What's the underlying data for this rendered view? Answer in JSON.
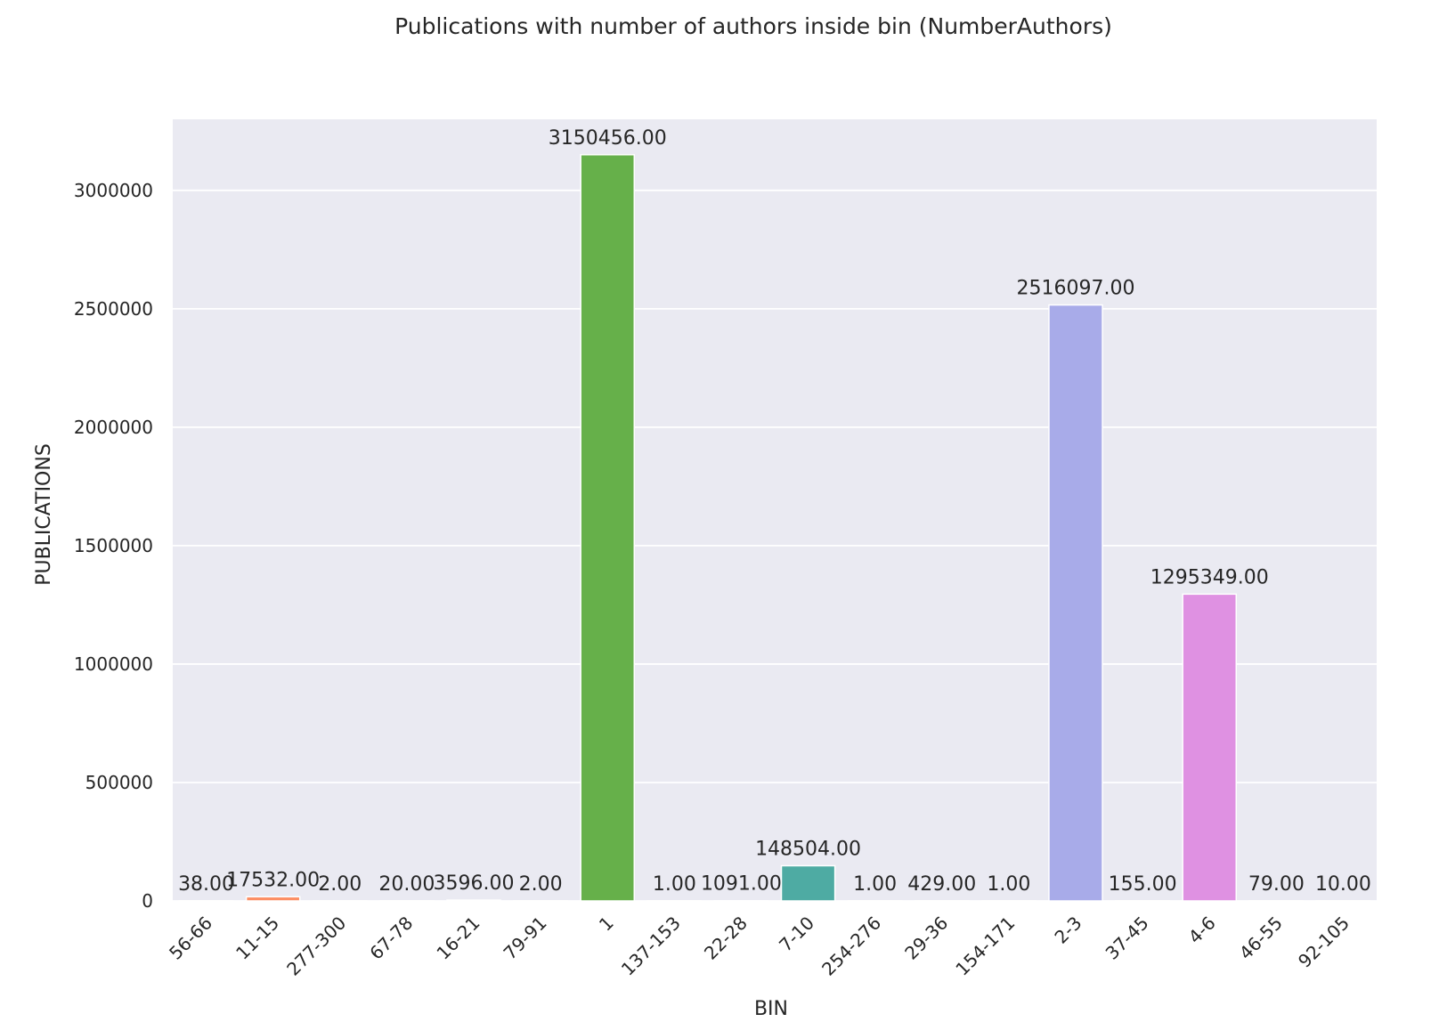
{
  "chart_data": {
    "type": "bar",
    "title": "Publications with number of authors inside bin (NumberAuthors)",
    "xlabel": "BIN",
    "ylabel": "PUBLICATIONS",
    "ylim": [
      0,
      3300000
    ],
    "yticks": [
      0,
      500000,
      1000000,
      1500000,
      2000000,
      2500000,
      3000000
    ],
    "ytick_labels": [
      "0",
      "500000",
      "1000000",
      "1500000",
      "2000000",
      "2500000",
      "3000000"
    ],
    "grid": true,
    "categories": [
      "56-66",
      "11-15",
      "277-300",
      "67-78",
      "16-21",
      "79-91",
      "1",
      "137-153",
      "22-28",
      "7-10",
      "254-276",
      "29-36",
      "154-171",
      "2-3",
      "37-45",
      "4-6",
      "46-55",
      "92-105"
    ],
    "values": [
      38,
      17532,
      2,
      20,
      3596,
      2,
      3150456,
      1,
      1091,
      148504,
      1,
      429,
      1,
      2516097,
      155,
      1295349,
      79,
      10
    ],
    "value_labels": [
      "38.00",
      "17532.00",
      "2.00",
      "20.00",
      "3596.00",
      "2.00",
      "3150456.00",
      "1.00",
      "1091.00",
      "148504.00",
      "1.00",
      "429.00",
      "1.00",
      "2516097.00",
      "155.00",
      "1295349.00",
      "79.00",
      "10.00"
    ],
    "colors": [
      "#66c2a5",
      "#fc8d62",
      "#8da0cb",
      "#e78ac3",
      "#a6d854",
      "#ffd92f",
      "#66b04a",
      "#9b6d59",
      "#d6698a",
      "#4eaba3",
      "#e5977c",
      "#8d9fc8",
      "#bf9fca",
      "#a8abe9",
      "#b5b48e",
      "#df91e2",
      "#9ccf65",
      "#b8d9a5"
    ]
  }
}
